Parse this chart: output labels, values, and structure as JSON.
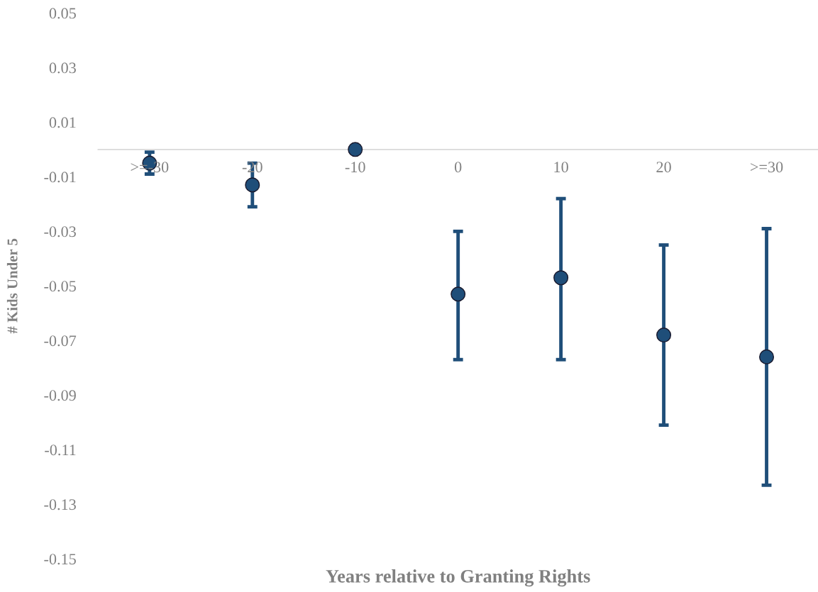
{
  "chart_data": {
    "type": "scatter",
    "xlabel": "Years relative to Granting Rights",
    "ylabel": "# Kids Under 5",
    "categories": [
      ">=-30",
      "-20",
      "-10",
      "0",
      "10",
      "20",
      ">=30"
    ],
    "series": [
      {
        "color": "#1f4e79",
        "values": [
          -0.005,
          -0.013,
          0,
          -0.053,
          -0.047,
          -0.068,
          -0.076
        ],
        "errors": [
          [
            -0.009,
            -0.001
          ],
          [
            -0.021,
            -0.005
          ],
          null,
          [
            -0.077,
            -0.03
          ],
          [
            -0.077,
            -0.018
          ],
          [
            -0.101,
            -0.035
          ],
          [
            -0.123,
            -0.029
          ]
        ]
      }
    ],
    "ylim": [
      -0.15,
      0.05
    ],
    "yticks": [
      0.05,
      0.03,
      0.01,
      -0.01,
      -0.03,
      -0.05,
      -0.07,
      -0.09,
      -0.11,
      -0.13,
      -0.15
    ],
    "marker": "circle",
    "grid": false,
    "legend": false
  }
}
